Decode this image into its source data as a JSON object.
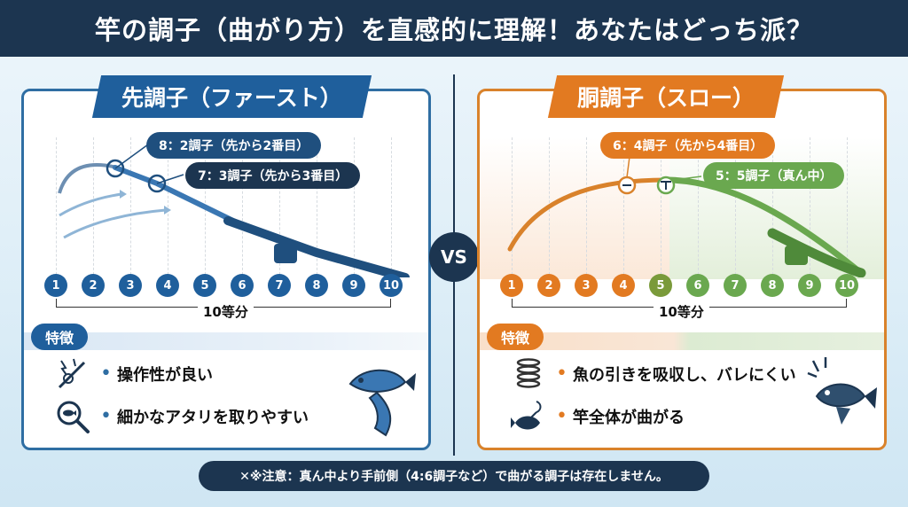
{
  "header": {
    "title": "竿の調子（曲がり方）を直感的に理解！あなたはどっち派？"
  },
  "vs_label": "VS",
  "fast": {
    "title": "先調子（ファースト）",
    "callout_1": "8：2調子（先から2番目）",
    "callout_2": "7：3調子（先から3番目）",
    "segments": [
      "1",
      "2",
      "3",
      "4",
      "5",
      "6",
      "7",
      "8",
      "9",
      "10"
    ],
    "division_label": "10等分",
    "features_title": "特徴",
    "features": [
      "操作性が良い",
      "細かなアタリを取りやすい"
    ],
    "icons": [
      "lightning-rod-icon",
      "magnifier-fish-icon",
      "fish-icon"
    ],
    "colors": {
      "main": "#1f5f9c",
      "accent": "#2f6ea3"
    }
  },
  "slow": {
    "title": "胴調子（スロー）",
    "callout_1": "6：4調子（先から4番目）",
    "callout_2": "5：5調子（真ん中）",
    "segments": [
      "1",
      "2",
      "3",
      "4",
      "5",
      "6",
      "7",
      "8",
      "9",
      "10"
    ],
    "division_label": "10等分",
    "features_title": "特徴",
    "features": [
      "魚の引きを吸収し、バレにくい",
      "竿全体が曲がる"
    ],
    "icons": [
      "spring-icon",
      "hooked-fish-icon",
      "fighting-fish-icon"
    ],
    "colors": {
      "main": "#e27a21",
      "green": "#6aa84f"
    }
  },
  "footer": {
    "note": "✕※注意：真ん中より手前側（4:6調子など）で曲がる調子は存在しません。"
  }
}
